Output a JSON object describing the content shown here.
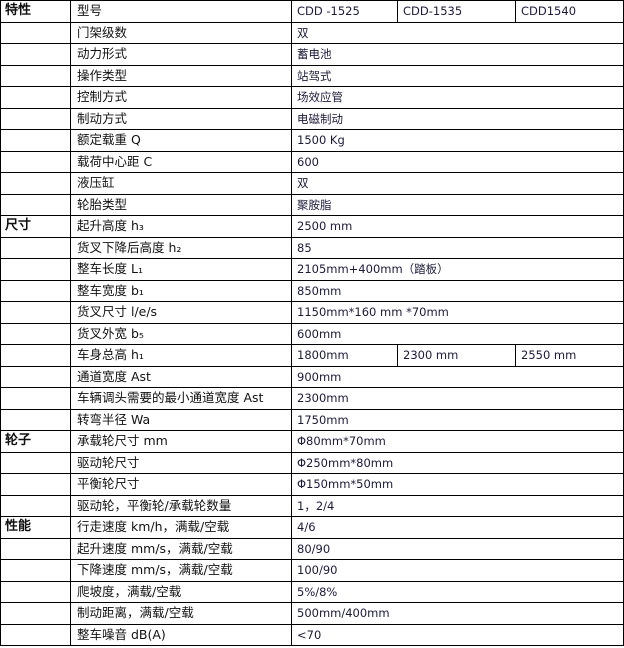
{
  "header": {
    "category": "特性",
    "label": "型号",
    "models": [
      "CDD -1525",
      "CDD-1535",
      "CDD1540"
    ]
  },
  "rows": [
    {
      "category": "",
      "label": "门架级数",
      "value": "双"
    },
    {
      "category": "",
      "label": "动力形式",
      "value": "蓄电池"
    },
    {
      "category": "",
      "label": "操作类型",
      "value": "站驾式"
    },
    {
      "category": "",
      "label": "控制方式",
      "value": "场效应管"
    },
    {
      "category": "",
      "label": "制动方式",
      "value": "电磁制动"
    },
    {
      "category": "",
      "label": "额定载重 Q",
      "value": "1500 Kg"
    },
    {
      "category": "",
      "label": "载荷中心距 C",
      "value": "600"
    },
    {
      "category": "",
      "label": "液压缸",
      "value": "双"
    },
    {
      "category": "",
      "label": "轮胎类型",
      "value": "聚胺脂"
    },
    {
      "category": "尺寸",
      "label": "起升高度 h₃",
      "value": "2500 mm"
    },
    {
      "category": "",
      "label": "货叉下降后高度 h₂",
      "value": "85"
    },
    {
      "category": "",
      "label": "整车长度 L₁",
      "value": "2105mm+400mm（踏板）"
    },
    {
      "category": "",
      "label": "整车宽度 b₁",
      "value": "850mm"
    },
    {
      "category": "",
      "label": "货叉尺寸 l/e/s",
      "value": "1150mm*160 mm *70mm"
    },
    {
      "category": "",
      "label": "货叉外宽 b₅",
      "value": "600mm"
    },
    {
      "category": "",
      "label": "车身总高 h₁",
      "values": [
        "1800mm",
        "2300 mm",
        "2550 mm"
      ]
    },
    {
      "category": "",
      "label": "通道宽度 Ast",
      "value": "900mm"
    },
    {
      "category": "",
      "label": "车辆调头需要的最小通道宽度 Ast",
      "value": "2300mm"
    },
    {
      "category": "",
      "label": "转弯半径 Wa",
      "value": "1750mm"
    },
    {
      "category": "轮子",
      "label": "承载轮尺寸 mm",
      "value": "Φ80mm*70mm"
    },
    {
      "category": "",
      "label": "驱动轮尺寸",
      "value": "Φ250mm*80mm"
    },
    {
      "category": "",
      "label": "平衡轮尺寸",
      "value": "Φ150mm*50mm"
    },
    {
      "category": "",
      "label": "驱动轮，平衡轮/承载轮数量",
      "value": "1，2/4"
    },
    {
      "category": "性能",
      "label": "行走速度 km/h，满载/空载",
      "value": "4/6"
    },
    {
      "category": "",
      "label": "起升速度 mm/s，满载/空载",
      "value": "80/90"
    },
    {
      "category": "",
      "label": "下降速度 mm/s，满载/空载",
      "value": "100/90"
    },
    {
      "category": "",
      "label": "爬坡度，满载/空载",
      "value": "5%/8%"
    },
    {
      "category": "",
      "label": "制动距离，满载/空载",
      "value": "500mm/400mm"
    },
    {
      "category": "",
      "label": "整车噪音 dB(A)",
      "value": "<70"
    }
  ]
}
